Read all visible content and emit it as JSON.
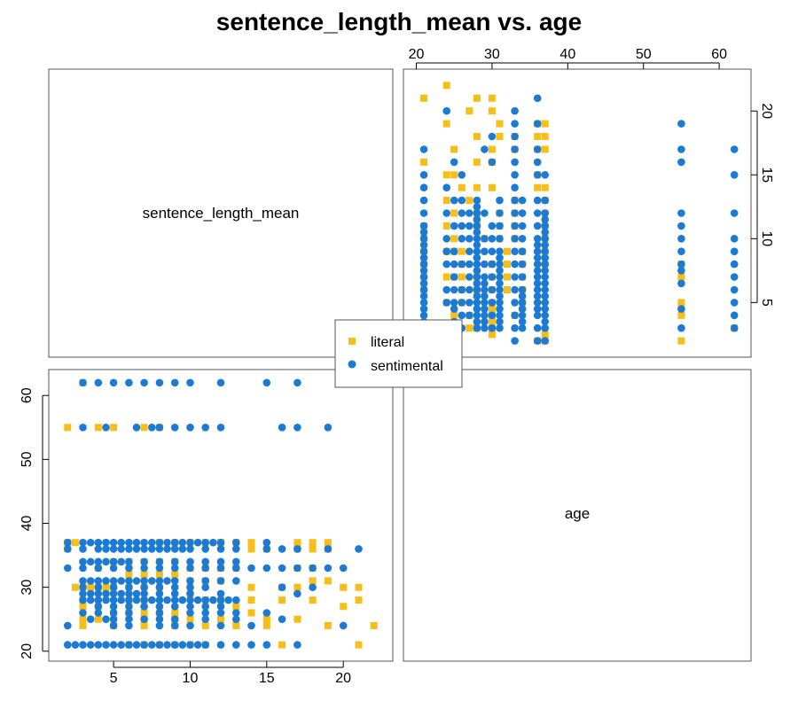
{
  "chart_data": {
    "type": "scatter",
    "title": "sentence_length_mean vs. age",
    "variables": [
      "sentence_length_mean",
      "age"
    ],
    "axes": {
      "sentence_length_mean": {
        "range": [
          1,
          23
        ],
        "ticks": [
          5,
          10,
          15,
          20
        ]
      },
      "age": {
        "range": [
          19,
          63.5
        ],
        "ticks": [
          20,
          30,
          40,
          50,
          60
        ]
      }
    },
    "legend": {
      "placement": "center",
      "entries": [
        {
          "label": "literal",
          "color": "#F5BE18",
          "marker": "square"
        },
        {
          "label": "sentimental",
          "color": "#1A7AD4",
          "marker": "circle"
        }
      ]
    },
    "series": [
      {
        "name": "literal",
        "color": "#F5BE18",
        "marker": "square",
        "points": [
          [
            2,
            55
          ],
          [
            2,
            37
          ],
          [
            2.5,
            37
          ],
          [
            3,
            62
          ],
          [
            4,
            55
          ],
          [
            5,
            55
          ],
          [
            7,
            55
          ],
          [
            8,
            55
          ],
          [
            3,
            30
          ],
          [
            3.5,
            30
          ],
          [
            4,
            30
          ],
          [
            4.5,
            30
          ],
          [
            5,
            30
          ],
          [
            6,
            30
          ],
          [
            7,
            30
          ],
          [
            8,
            30
          ],
          [
            3,
            27
          ],
          [
            4,
            27
          ],
          [
            5,
            26
          ],
          [
            6,
            26
          ],
          [
            7,
            26
          ],
          [
            8,
            26
          ],
          [
            9,
            26
          ],
          [
            3,
            25
          ],
          [
            4,
            25
          ],
          [
            7,
            25
          ],
          [
            9,
            25
          ],
          [
            10,
            25
          ],
          [
            12,
            25
          ],
          [
            3,
            24
          ],
          [
            5,
            24
          ],
          [
            7,
            24
          ],
          [
            9,
            24
          ],
          [
            11,
            24
          ],
          [
            13,
            24
          ],
          [
            5,
            34
          ],
          [
            6,
            34
          ],
          [
            7,
            34
          ],
          [
            8,
            34
          ],
          [
            9,
            34
          ],
          [
            10,
            33
          ],
          [
            11,
            33
          ],
          [
            12,
            33
          ],
          [
            13,
            33
          ],
          [
            14,
            30
          ],
          [
            14,
            28
          ],
          [
            14,
            26
          ],
          [
            15,
            25
          ],
          [
            15,
            24
          ],
          [
            16,
            30
          ],
          [
            16,
            28
          ],
          [
            17,
            37
          ],
          [
            17,
            36
          ],
          [
            17,
            33
          ],
          [
            17,
            30
          ],
          [
            17,
            25
          ],
          [
            18,
            37
          ],
          [
            18,
            36
          ],
          [
            18,
            33
          ],
          [
            18,
            31
          ],
          [
            18,
            28
          ],
          [
            19,
            37
          ],
          [
            19,
            36
          ],
          [
            19,
            31
          ],
          [
            19,
            24
          ],
          [
            20,
            30
          ],
          [
            20,
            27
          ],
          [
            21,
            30
          ],
          [
            21,
            28
          ],
          [
            21,
            21
          ],
          [
            22,
            24
          ],
          [
            8,
            37
          ],
          [
            9,
            37
          ],
          [
            10,
            37
          ],
          [
            11,
            37
          ],
          [
            12,
            37
          ],
          [
            13,
            37
          ],
          [
            10,
            31
          ],
          [
            11,
            31
          ],
          [
            12,
            31
          ],
          [
            10,
            29
          ],
          [
            11,
            28
          ],
          [
            12,
            28
          ],
          [
            13,
            27
          ],
          [
            6,
            21
          ],
          [
            7,
            21
          ],
          [
            8,
            21
          ],
          [
            9,
            21
          ],
          [
            10,
            21
          ],
          [
            11,
            21
          ],
          [
            14,
            37
          ],
          [
            14,
            36
          ],
          [
            15,
            36
          ],
          [
            16,
            21
          ],
          [
            2,
            36
          ],
          [
            2.5,
            30
          ],
          [
            3,
            28
          ],
          [
            6,
            32
          ],
          [
            7,
            32
          ],
          [
            8,
            32
          ],
          [
            9,
            32
          ],
          [
            4,
            33
          ],
          [
            6,
            28
          ],
          [
            7,
            28
          ]
        ]
      },
      {
        "name": "sentimental",
        "color": "#1A7AD4",
        "marker": "circle",
        "points": [
          [
            3,
            62
          ],
          [
            4,
            62
          ],
          [
            5,
            62
          ],
          [
            6,
            62
          ],
          [
            7,
            62
          ],
          [
            8,
            62
          ],
          [
            9,
            62
          ],
          [
            10,
            62
          ],
          [
            12,
            62
          ],
          [
            15,
            62
          ],
          [
            17,
            62
          ],
          [
            3,
            55
          ],
          [
            4.5,
            55
          ],
          [
            6.5,
            55
          ],
          [
            7.5,
            55
          ],
          [
            8,
            55
          ],
          [
            9,
            55
          ],
          [
            10,
            55
          ],
          [
            11,
            55
          ],
          [
            12,
            55
          ],
          [
            16,
            55
          ],
          [
            17,
            55
          ],
          [
            19,
            55
          ],
          [
            2,
            37
          ],
          [
            3,
            37
          ],
          [
            3.5,
            37
          ],
          [
            4,
            37
          ],
          [
            4.5,
            37
          ],
          [
            5,
            37
          ],
          [
            5.5,
            37
          ],
          [
            6,
            37
          ],
          [
            6.5,
            37
          ],
          [
            7,
            37
          ],
          [
            7.5,
            37
          ],
          [
            8,
            37
          ],
          [
            8.5,
            37
          ],
          [
            9,
            37
          ],
          [
            9.5,
            37
          ],
          [
            10,
            37
          ],
          [
            10.5,
            37
          ],
          [
            11,
            37
          ],
          [
            11.5,
            37
          ],
          [
            12,
            37
          ],
          [
            13,
            37
          ],
          [
            15,
            37
          ],
          [
            2,
            36
          ],
          [
            3,
            36
          ],
          [
            4,
            36
          ],
          [
            4.5,
            36
          ],
          [
            5,
            36
          ],
          [
            5.5,
            36
          ],
          [
            6,
            36
          ],
          [
            6.5,
            36
          ],
          [
            7,
            36
          ],
          [
            7.5,
            36
          ],
          [
            8,
            36
          ],
          [
            8.5,
            36
          ],
          [
            9,
            36
          ],
          [
            9.5,
            36
          ],
          [
            10,
            36
          ],
          [
            11,
            36
          ],
          [
            12,
            36
          ],
          [
            13,
            36
          ],
          [
            15,
            36
          ],
          [
            16,
            36
          ],
          [
            17,
            36
          ],
          [
            19,
            36
          ],
          [
            21,
            36
          ],
          [
            3,
            34
          ],
          [
            3.5,
            34
          ],
          [
            4,
            34
          ],
          [
            4.5,
            34
          ],
          [
            5,
            34
          ],
          [
            5.5,
            34
          ],
          [
            6,
            34
          ],
          [
            7,
            34
          ],
          [
            8,
            34
          ],
          [
            9,
            34
          ],
          [
            10,
            34
          ],
          [
            11,
            34
          ],
          [
            12,
            34
          ],
          [
            13,
            34
          ],
          [
            2,
            33
          ],
          [
            3,
            33
          ],
          [
            4,
            33
          ],
          [
            5,
            33
          ],
          [
            6,
            33
          ],
          [
            7,
            33
          ],
          [
            8,
            33
          ],
          [
            9,
            33
          ],
          [
            10,
            33
          ],
          [
            11,
            33
          ],
          [
            12,
            33
          ],
          [
            13,
            33
          ],
          [
            14,
            33
          ],
          [
            15,
            33
          ],
          [
            16,
            33
          ],
          [
            17,
            33
          ],
          [
            18,
            33
          ],
          [
            19,
            33
          ],
          [
            20,
            33
          ],
          [
            3,
            31
          ],
          [
            3.5,
            31
          ],
          [
            4,
            31
          ],
          [
            4.5,
            31
          ],
          [
            5,
            31
          ],
          [
            5.5,
            31
          ],
          [
            6,
            31
          ],
          [
            6.5,
            31
          ],
          [
            7,
            31
          ],
          [
            7.5,
            31
          ],
          [
            8,
            31
          ],
          [
            8.5,
            31
          ],
          [
            9,
            31
          ],
          [
            10,
            31
          ],
          [
            11,
            31
          ],
          [
            12,
            31
          ],
          [
            13,
            31
          ],
          [
            3,
            30
          ],
          [
            4,
            30
          ],
          [
            5,
            30
          ],
          [
            6,
            30
          ],
          [
            7,
            30
          ],
          [
            8,
            30
          ],
          [
            9,
            30
          ],
          [
            10,
            30
          ],
          [
            11,
            30
          ],
          [
            16,
            30
          ],
          [
            18,
            30
          ],
          [
            3,
            29
          ],
          [
            3.5,
            29
          ],
          [
            4,
            29
          ],
          [
            4.5,
            29
          ],
          [
            5,
            29
          ],
          [
            5.5,
            29
          ],
          [
            6,
            29
          ],
          [
            6.5,
            29
          ],
          [
            7,
            29
          ],
          [
            8,
            29
          ],
          [
            9,
            29
          ],
          [
            10,
            29
          ],
          [
            12,
            29
          ],
          [
            17,
            29
          ],
          [
            3,
            28
          ],
          [
            3.5,
            28
          ],
          [
            4,
            28
          ],
          [
            4.5,
            28
          ],
          [
            5,
            28
          ],
          [
            5.5,
            28
          ],
          [
            6,
            28
          ],
          [
            6.5,
            28
          ],
          [
            7,
            28
          ],
          [
            7.5,
            28
          ],
          [
            8,
            28
          ],
          [
            8.5,
            28
          ],
          [
            9,
            28
          ],
          [
            9.5,
            28
          ],
          [
            10,
            28
          ],
          [
            10.5,
            28
          ],
          [
            11,
            28
          ],
          [
            11.5,
            28
          ],
          [
            12,
            28
          ],
          [
            12.5,
            28
          ],
          [
            13,
            28
          ],
          [
            4,
            27
          ],
          [
            5,
            27
          ],
          [
            6,
            27
          ],
          [
            7,
            27
          ],
          [
            8,
            27
          ],
          [
            9,
            27
          ],
          [
            10,
            27
          ],
          [
            11,
            27
          ],
          [
            12,
            27
          ],
          [
            3,
            26
          ],
          [
            4,
            26
          ],
          [
            5,
            26
          ],
          [
            6,
            26
          ],
          [
            8,
            26
          ],
          [
            10,
            26
          ],
          [
            11,
            26
          ],
          [
            12,
            26
          ],
          [
            13,
            26
          ],
          [
            15,
            26
          ],
          [
            3.5,
            25
          ],
          [
            4.5,
            25
          ],
          [
            5,
            25
          ],
          [
            6,
            25
          ],
          [
            7,
            25
          ],
          [
            8,
            25
          ],
          [
            9,
            25
          ],
          [
            11,
            25
          ],
          [
            13,
            25
          ],
          [
            16,
            25
          ],
          [
            2,
            24
          ],
          [
            5,
            24
          ],
          [
            6,
            24
          ],
          [
            8,
            24
          ],
          [
            9,
            24
          ],
          [
            10,
            24
          ],
          [
            12,
            24
          ],
          [
            14,
            24
          ],
          [
            20,
            24
          ],
          [
            2,
            21
          ],
          [
            2.5,
            21
          ],
          [
            3,
            21
          ],
          [
            3.5,
            21
          ],
          [
            4,
            21
          ],
          [
            4.5,
            21
          ],
          [
            5,
            21
          ],
          [
            5.5,
            21
          ],
          [
            6,
            21
          ],
          [
            6.5,
            21
          ],
          [
            7,
            21
          ],
          [
            7.5,
            21
          ],
          [
            8,
            21
          ],
          [
            8.5,
            21
          ],
          [
            9,
            21
          ],
          [
            9.5,
            21
          ],
          [
            10,
            21
          ],
          [
            10.5,
            21
          ],
          [
            11,
            21
          ],
          [
            12,
            21
          ],
          [
            13,
            21
          ],
          [
            14,
            21
          ],
          [
            15,
            21
          ],
          [
            17,
            21
          ]
        ]
      }
    ]
  }
}
